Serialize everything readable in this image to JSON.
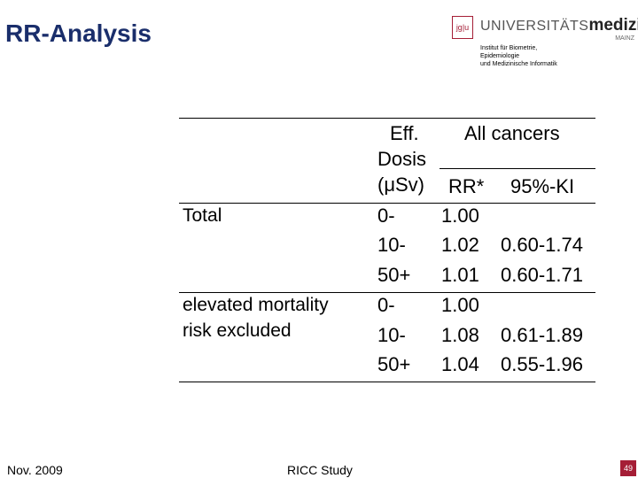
{
  "title": "RR-Analysis",
  "logo": {
    "mark": "jɡ|u",
    "word_prefix": "UNIVERSITÄTS",
    "word_bold": "medizin.",
    "city": "MAINZ"
  },
  "institute": {
    "line1": "Institut für Biometrie, Epidemiologie",
    "line2": "und Medizinische Informatik"
  },
  "table": {
    "header": {
      "dose1": "Eff.",
      "dose2": "Dosis",
      "dose3": "(μSv)",
      "group": "All cancers",
      "rr": "RR*",
      "ci": "95%-KI"
    },
    "groups": [
      {
        "label_lines": [
          "Total"
        ],
        "rows": [
          {
            "dose": "0-",
            "rr": "1.00",
            "ci": ""
          },
          {
            "dose": "10-",
            "rr": "1.02",
            "ci": "0.60-1.74"
          },
          {
            "dose": "50+",
            "rr": "1.01",
            "ci": "0.60-1.71"
          }
        ]
      },
      {
        "label_lines": [
          "elevated mortality",
          "risk excluded"
        ],
        "rows": [
          {
            "dose": "0-",
            "rr": "1.00",
            "ci": ""
          },
          {
            "dose": "10-",
            "rr": "1.08",
            "ci": "0.61-1.89"
          },
          {
            "dose": "50+",
            "rr": "1.04",
            "ci": "0.55-1.96"
          }
        ]
      }
    ]
  },
  "footer": {
    "date": "Nov. 2009",
    "study": "RICC Study",
    "page": "49"
  },
  "colors": {
    "title": "#1a2e6b",
    "accent": "#a51e36"
  }
}
